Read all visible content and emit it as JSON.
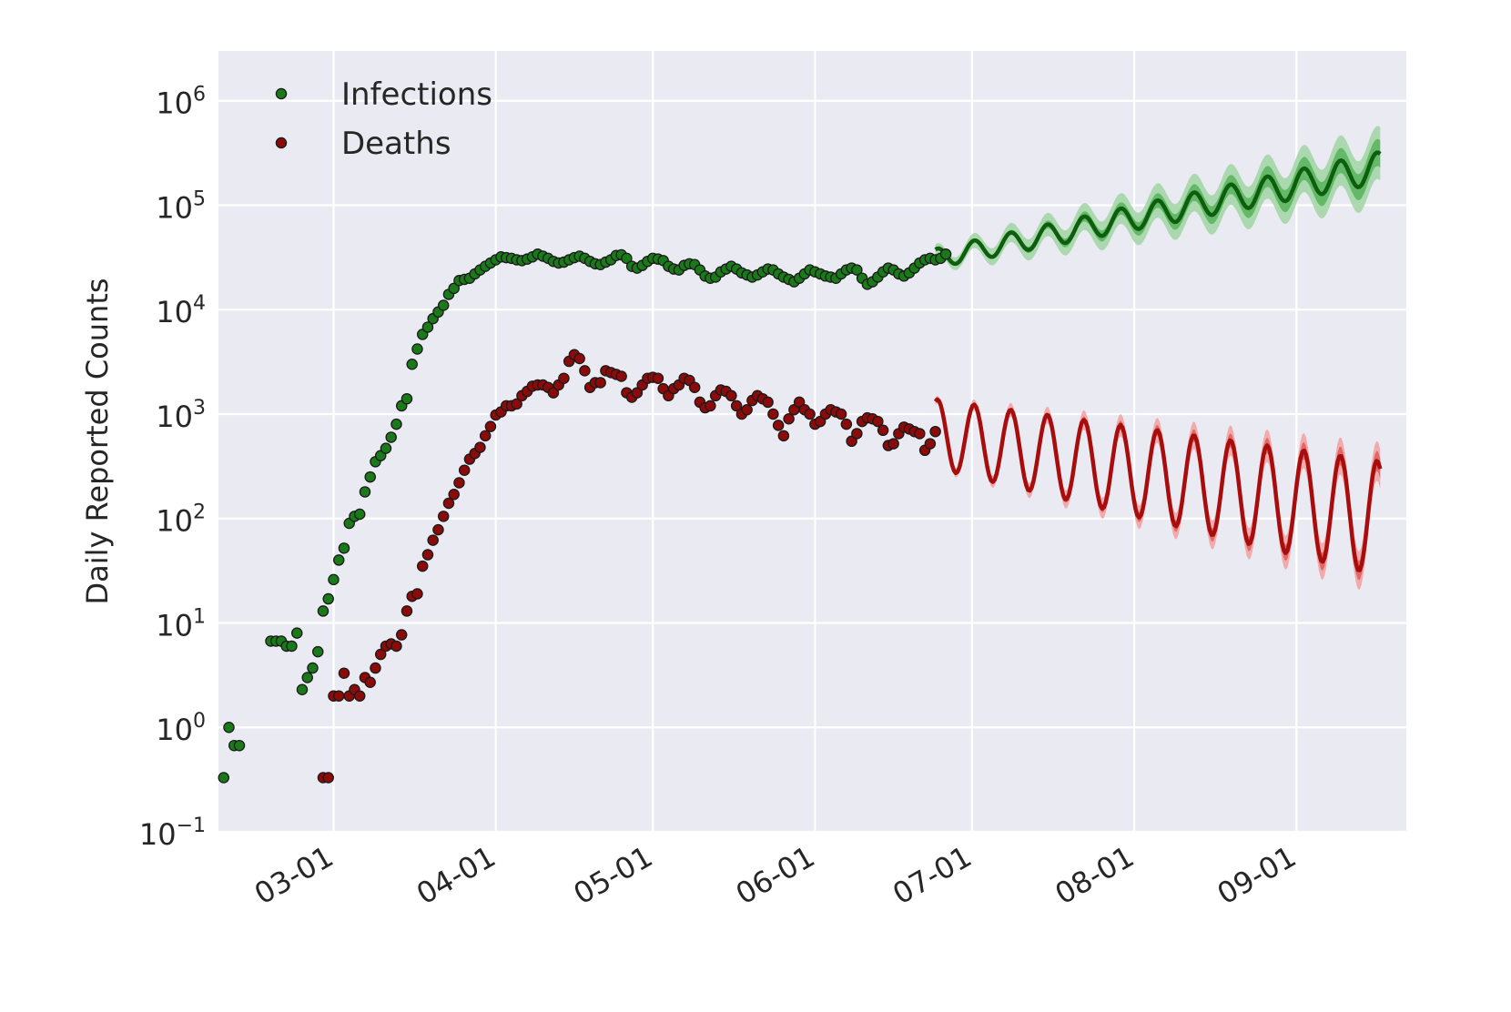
{
  "chart_data": {
    "type": "scatter",
    "title": "",
    "xlabel": "",
    "ylabel": "Daily Reported Counts",
    "yscale": "log",
    "ylim": [
      0.1,
      3000000
    ],
    "xlim": [
      "2020-02-08",
      "2020-09-22"
    ],
    "grid": true,
    "legend_position": "top-left",
    "background_color": "#eaeaf2",
    "x_ticks": [
      {
        "label": "03-01",
        "date": "2020-03-01"
      },
      {
        "label": "04-01",
        "date": "2020-04-01"
      },
      {
        "label": "05-01",
        "date": "2020-05-01"
      },
      {
        "label": "06-01",
        "date": "2020-06-01"
      },
      {
        "label": "07-01",
        "date": "2020-07-01"
      },
      {
        "label": "08-01",
        "date": "2020-08-01"
      },
      {
        "label": "09-01",
        "date": "2020-09-01"
      }
    ],
    "y_ticks": [
      {
        "value": 0.1,
        "base": "10",
        "exp": "−1"
      },
      {
        "value": 1,
        "base": "10",
        "exp": "0"
      },
      {
        "value": 10,
        "base": "10",
        "exp": "1"
      },
      {
        "value": 100,
        "base": "10",
        "exp": "2"
      },
      {
        "value": 1000,
        "base": "10",
        "exp": "3"
      },
      {
        "value": 10000,
        "base": "10",
        "exp": "4"
      },
      {
        "value": 100000,
        "base": "10",
        "exp": "5"
      },
      {
        "value": 1000000,
        "base": "10",
        "exp": "6"
      }
    ],
    "series": [
      {
        "name": "Infections",
        "kind": "observed",
        "color": "#1a7a1a",
        "points": [
          [
            "2020-02-09",
            0.33
          ],
          [
            "2020-02-10",
            1.0
          ],
          [
            "2020-02-11",
            0.67
          ],
          [
            "2020-02-12",
            0.67
          ],
          [
            "2020-02-18",
            6.7
          ],
          [
            "2020-02-19",
            6.7
          ],
          [
            "2020-02-20",
            6.7
          ],
          [
            "2020-02-21",
            6.0
          ],
          [
            "2020-02-22",
            6.0
          ],
          [
            "2020-02-23",
            8.0
          ],
          [
            "2020-02-24",
            2.3
          ],
          [
            "2020-02-25",
            3.0
          ],
          [
            "2020-02-26",
            3.7
          ],
          [
            "2020-02-27",
            5.3
          ],
          [
            "2020-02-28",
            13
          ],
          [
            "2020-02-29",
            17
          ],
          [
            "2020-03-01",
            26
          ],
          [
            "2020-03-02",
            40
          ],
          [
            "2020-03-03",
            52
          ],
          [
            "2020-03-04",
            90
          ],
          [
            "2020-03-05",
            105
          ],
          [
            "2020-03-06",
            110
          ],
          [
            "2020-03-07",
            180
          ],
          [
            "2020-03-08",
            250
          ],
          [
            "2020-03-09",
            350
          ],
          [
            "2020-03-10",
            400
          ],
          [
            "2020-03-11",
            470
          ],
          [
            "2020-03-12",
            600
          ],
          [
            "2020-03-13",
            800
          ],
          [
            "2020-03-14",
            1200
          ],
          [
            "2020-03-15",
            1400
          ],
          [
            "2020-03-16",
            3000
          ],
          [
            "2020-03-17",
            4200
          ],
          [
            "2020-03-18",
            5800
          ],
          [
            "2020-03-19",
            6800
          ],
          [
            "2020-03-20",
            8200
          ],
          [
            "2020-03-21",
            9500
          ],
          [
            "2020-03-22",
            11000
          ],
          [
            "2020-03-23",
            14000
          ],
          [
            "2020-03-24",
            16000
          ],
          [
            "2020-03-25",
            19000
          ],
          [
            "2020-03-26",
            19500
          ],
          [
            "2020-03-27",
            20000
          ],
          [
            "2020-03-28",
            22000
          ],
          [
            "2020-03-29",
            24000
          ],
          [
            "2020-03-30",
            26000
          ],
          [
            "2020-03-31",
            28000
          ],
          [
            "2020-04-01",
            30000
          ],
          [
            "2020-04-02",
            32000
          ],
          [
            "2020-04-03",
            31500
          ],
          [
            "2020-04-04",
            31000
          ],
          [
            "2020-04-05",
            30000
          ],
          [
            "2020-04-06",
            29500
          ],
          [
            "2020-04-07",
            30500
          ],
          [
            "2020-04-08",
            32000
          ],
          [
            "2020-04-09",
            34000
          ],
          [
            "2020-04-10",
            32500
          ],
          [
            "2020-04-11",
            31000
          ],
          [
            "2020-04-12",
            29000
          ],
          [
            "2020-04-13",
            28000
          ],
          [
            "2020-04-14",
            28500
          ],
          [
            "2020-04-15",
            30000
          ],
          [
            "2020-04-16",
            31500
          ],
          [
            "2020-04-17",
            32500
          ],
          [
            "2020-04-18",
            31000
          ],
          [
            "2020-04-19",
            29000
          ],
          [
            "2020-04-20",
            27500
          ],
          [
            "2020-04-21",
            27000
          ],
          [
            "2020-04-22",
            28500
          ],
          [
            "2020-04-23",
            30000
          ],
          [
            "2020-04-24",
            33000
          ],
          [
            "2020-04-25",
            33500
          ],
          [
            "2020-04-26",
            31000
          ],
          [
            "2020-04-27",
            26000
          ],
          [
            "2020-04-28",
            25000
          ],
          [
            "2020-04-29",
            26500
          ],
          [
            "2020-04-30",
            29000
          ],
          [
            "2020-05-01",
            31000
          ],
          [
            "2020-05-02",
            30500
          ],
          [
            "2020-05-03",
            29500
          ],
          [
            "2020-05-04",
            26000
          ],
          [
            "2020-05-05",
            24500
          ],
          [
            "2020-05-06",
            24000
          ],
          [
            "2020-05-07",
            26500
          ],
          [
            "2020-05-08",
            27500
          ],
          [
            "2020-05-09",
            27000
          ],
          [
            "2020-05-10",
            24000
          ],
          [
            "2020-05-11",
            21000
          ],
          [
            "2020-05-12",
            20000
          ],
          [
            "2020-05-13",
            20500
          ],
          [
            "2020-05-14",
            23000
          ],
          [
            "2020-05-15",
            24500
          ],
          [
            "2020-05-16",
            26000
          ],
          [
            "2020-05-17",
            24500
          ],
          [
            "2020-05-18",
            22500
          ],
          [
            "2020-05-19",
            21500
          ],
          [
            "2020-05-20",
            20500
          ],
          [
            "2020-05-21",
            21500
          ],
          [
            "2020-05-22",
            23000
          ],
          [
            "2020-05-23",
            24500
          ],
          [
            "2020-05-24",
            24000
          ],
          [
            "2020-05-25",
            22000
          ],
          [
            "2020-05-26",
            20500
          ],
          [
            "2020-05-27",
            19500
          ],
          [
            "2020-05-28",
            18500
          ],
          [
            "2020-05-29",
            20000
          ],
          [
            "2020-05-30",
            22000
          ],
          [
            "2020-05-31",
            24000
          ],
          [
            "2020-06-01",
            23000
          ],
          [
            "2020-06-02",
            22000
          ],
          [
            "2020-06-03",
            21000
          ],
          [
            "2020-06-04",
            20500
          ],
          [
            "2020-06-05",
            20000
          ],
          [
            "2020-06-06",
            22000
          ],
          [
            "2020-06-07",
            24000
          ],
          [
            "2020-06-08",
            25000
          ],
          [
            "2020-06-09",
            24000
          ],
          [
            "2020-06-10",
            20000
          ],
          [
            "2020-06-11",
            17500
          ],
          [
            "2020-06-12",
            18500
          ],
          [
            "2020-06-13",
            20500
          ],
          [
            "2020-06-14",
            23000
          ],
          [
            "2020-06-15",
            25000
          ],
          [
            "2020-06-16",
            24000
          ],
          [
            "2020-06-17",
            22000
          ],
          [
            "2020-06-18",
            21000
          ],
          [
            "2020-06-19",
            22500
          ],
          [
            "2020-06-20",
            25000
          ],
          [
            "2020-06-21",
            28000
          ],
          [
            "2020-06-22",
            30000
          ],
          [
            "2020-06-23",
            31000
          ],
          [
            "2020-06-24",
            30000
          ],
          [
            "2020-06-25",
            31000
          ],
          [
            "2020-06-26",
            34000
          ]
        ]
      },
      {
        "name": "Deaths",
        "kind": "observed",
        "color": "#8b0a0a",
        "points": [
          [
            "2020-02-28",
            0.33
          ],
          [
            "2020-02-29",
            0.33
          ],
          [
            "2020-03-01",
            2.0
          ],
          [
            "2020-03-02",
            2.0
          ],
          [
            "2020-03-03",
            3.3
          ],
          [
            "2020-03-04",
            2.0
          ],
          [
            "2020-03-05",
            2.3
          ],
          [
            "2020-03-06",
            2.0
          ],
          [
            "2020-03-07",
            3.0
          ],
          [
            "2020-03-08",
            2.7
          ],
          [
            "2020-03-09",
            3.7
          ],
          [
            "2020-03-10",
            5.0
          ],
          [
            "2020-03-11",
            6.0
          ],
          [
            "2020-03-12",
            6.3
          ],
          [
            "2020-03-13",
            6.0
          ],
          [
            "2020-03-14",
            7.7
          ],
          [
            "2020-03-15",
            13
          ],
          [
            "2020-03-16",
            18
          ],
          [
            "2020-03-17",
            19
          ],
          [
            "2020-03-18",
            35
          ],
          [
            "2020-03-19",
            45
          ],
          [
            "2020-03-20",
            62
          ],
          [
            "2020-03-21",
            78
          ],
          [
            "2020-03-22",
            105
          ],
          [
            "2020-03-23",
            140
          ],
          [
            "2020-03-24",
            170
          ],
          [
            "2020-03-25",
            220
          ],
          [
            "2020-03-26",
            290
          ],
          [
            "2020-03-27",
            370
          ],
          [
            "2020-03-28",
            420
          ],
          [
            "2020-03-29",
            480
          ],
          [
            "2020-03-30",
            620
          ],
          [
            "2020-03-31",
            760
          ],
          [
            "2020-04-01",
            980
          ],
          [
            "2020-04-02",
            1050
          ],
          [
            "2020-04-03",
            1200
          ],
          [
            "2020-04-04",
            1200
          ],
          [
            "2020-04-05",
            1250
          ],
          [
            "2020-04-06",
            1500
          ],
          [
            "2020-04-07",
            1650
          ],
          [
            "2020-04-08",
            1850
          ],
          [
            "2020-04-09",
            1900
          ],
          [
            "2020-04-10",
            1900
          ],
          [
            "2020-04-11",
            1800
          ],
          [
            "2020-04-12",
            1600
          ],
          [
            "2020-04-13",
            1900
          ],
          [
            "2020-04-14",
            2200
          ],
          [
            "2020-04-15",
            3200
          ],
          [
            "2020-04-16",
            3700
          ],
          [
            "2020-04-17",
            3400
          ],
          [
            "2020-04-18",
            2600
          ],
          [
            "2020-04-19",
            1800
          ],
          [
            "2020-04-20",
            2000
          ],
          [
            "2020-04-21",
            2000
          ],
          [
            "2020-04-22",
            2600
          ],
          [
            "2020-04-23",
            2500
          ],
          [
            "2020-04-24",
            2400
          ],
          [
            "2020-04-25",
            2300
          ],
          [
            "2020-04-26",
            1600
          ],
          [
            "2020-04-27",
            1450
          ],
          [
            "2020-04-28",
            1600
          ],
          [
            "2020-04-29",
            1900
          ],
          [
            "2020-04-30",
            2200
          ],
          [
            "2020-05-01",
            2250
          ],
          [
            "2020-05-02",
            2200
          ],
          [
            "2020-05-03",
            1750
          ],
          [
            "2020-05-04",
            1500
          ],
          [
            "2020-05-05",
            1750
          ],
          [
            "2020-05-06",
            1900
          ],
          [
            "2020-05-07",
            2200
          ],
          [
            "2020-05-08",
            2100
          ],
          [
            "2020-05-09",
            1800
          ],
          [
            "2020-05-10",
            1300
          ],
          [
            "2020-05-11",
            1150
          ],
          [
            "2020-05-12",
            1200
          ],
          [
            "2020-05-13",
            1500
          ],
          [
            "2020-05-14",
            1700
          ],
          [
            "2020-05-15",
            1650
          ],
          [
            "2020-05-16",
            1500
          ],
          [
            "2020-05-17",
            1200
          ],
          [
            "2020-05-18",
            1000
          ],
          [
            "2020-05-19",
            1100
          ],
          [
            "2020-05-20",
            1350
          ],
          [
            "2020-05-21",
            1500
          ],
          [
            "2020-05-22",
            1400
          ],
          [
            "2020-05-23",
            1300
          ],
          [
            "2020-05-24",
            1000
          ],
          [
            "2020-05-25",
            780
          ],
          [
            "2020-05-26",
            620
          ],
          [
            "2020-05-27",
            900
          ],
          [
            "2020-05-28",
            1100
          ],
          [
            "2020-05-29",
            1300
          ],
          [
            "2020-05-30",
            1100
          ],
          [
            "2020-05-31",
            1000
          ],
          [
            "2020-06-01",
            800
          ],
          [
            "2020-06-02",
            850
          ],
          [
            "2020-06-03",
            1000
          ],
          [
            "2020-06-04",
            1100
          ],
          [
            "2020-06-05",
            1050
          ],
          [
            "2020-06-06",
            1000
          ],
          [
            "2020-06-07",
            800
          ],
          [
            "2020-06-08",
            550
          ],
          [
            "2020-06-09",
            650
          ],
          [
            "2020-06-10",
            850
          ],
          [
            "2020-06-11",
            920
          ],
          [
            "2020-06-12",
            900
          ],
          [
            "2020-06-13",
            850
          ],
          [
            "2020-06-14",
            700
          ],
          [
            "2020-06-15",
            500
          ],
          [
            "2020-06-16",
            520
          ],
          [
            "2020-06-17",
            650
          ],
          [
            "2020-06-18",
            750
          ],
          [
            "2020-06-19",
            720
          ],
          [
            "2020-06-20",
            680
          ],
          [
            "2020-06-21",
            650
          ],
          [
            "2020-06-22",
            450
          ],
          [
            "2020-06-23",
            520
          ],
          [
            "2020-06-24",
            680
          ]
        ]
      },
      {
        "name": "",
        "kind": "forecast",
        "of": "Infections",
        "line_color": "#0d5e0d",
        "band_inner_color": "#4caf50",
        "band_outer_color": "#a5d6a7",
        "start": "2020-06-24",
        "end": "2020-09-17",
        "start_value": 31000,
        "end_value": 230000,
        "weekly_amplitude": 0.15,
        "inner_band_end_ratio": 1.35,
        "outer_band_end_ratio": 1.8
      },
      {
        "name": "",
        "kind": "forecast",
        "of": "Deaths",
        "line_color": "#a80d0d",
        "band_inner_color": "#d9534f",
        "band_outer_color": "#f2a4a4",
        "start": "2020-06-24",
        "end": "2020-09-17",
        "start_value": 650,
        "end_value": 100,
        "weekly_amplitude": 0.55,
        "inner_band_end_ratio": 1.25,
        "outer_band_end_ratio": 1.55
      }
    ]
  }
}
